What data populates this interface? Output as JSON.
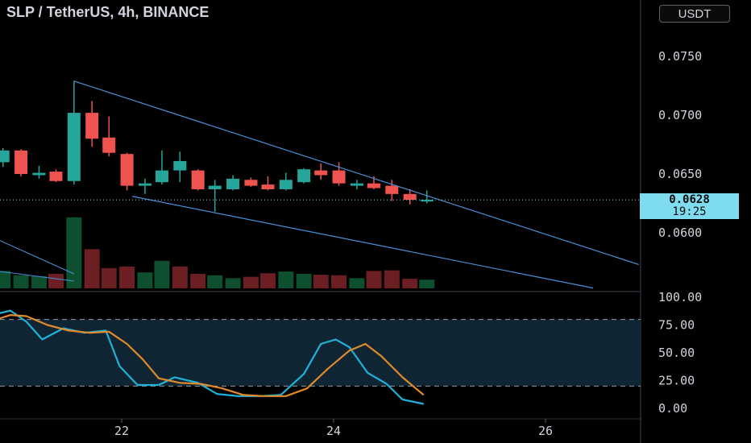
{
  "title": "SLP / TetherUS, 4h, BINANCE",
  "currency_button": "USDT",
  "last_price": {
    "value": "0.0628",
    "countdown": "19:25"
  },
  "colors": {
    "up": "#26a69a",
    "down": "#ef5350",
    "vol_up": "#0d4f2f",
    "vol_down": "#6b1f22",
    "trendline": "#4a90d9",
    "stoch_k": "#1fb3d9",
    "stoch_d": "#e08a2c",
    "stoch_band": "#0f2533"
  },
  "chart_data": [
    {
      "type": "candlestick",
      "title": "SLP / TetherUS, 4h, BINANCE",
      "x_ticks": [
        {
          "x": 22,
          "label": "22"
        },
        {
          "x": 24,
          "label": "24"
        },
        {
          "x": 26,
          "label": "26"
        }
      ],
      "y_ticks": [
        {
          "v": 0.075,
          "label": "0.0750"
        },
        {
          "v": 0.07,
          "label": "0.0700"
        },
        {
          "v": 0.065,
          "label": "0.0650"
        },
        {
          "v": 0.06,
          "label": "0.0600"
        }
      ],
      "candles": [
        {
          "t": 20.88,
          "o": 0.066,
          "h": 0.0672,
          "l": 0.0656,
          "c": 0.067
        },
        {
          "t": 21.05,
          "o": 0.067,
          "h": 0.0671,
          "l": 0.0648,
          "c": 0.065
        },
        {
          "t": 21.22,
          "o": 0.0649,
          "h": 0.0657,
          "l": 0.0646,
          "c": 0.0651
        },
        {
          "t": 21.38,
          "o": 0.0652,
          "h": 0.0654,
          "l": 0.0643,
          "c": 0.0644
        },
        {
          "t": 21.55,
          "o": 0.0644,
          "h": 0.0729,
          "l": 0.0641,
          "c": 0.0702
        },
        {
          "t": 21.72,
          "o": 0.0702,
          "h": 0.0712,
          "l": 0.0673,
          "c": 0.068
        },
        {
          "t": 21.88,
          "o": 0.0681,
          "h": 0.0699,
          "l": 0.0665,
          "c": 0.0668
        },
        {
          "t": 22.05,
          "o": 0.0667,
          "h": 0.0668,
          "l": 0.0636,
          "c": 0.064
        },
        {
          "t": 22.22,
          "o": 0.064,
          "h": 0.0646,
          "l": 0.0633,
          "c": 0.0642
        },
        {
          "t": 22.38,
          "o": 0.0643,
          "h": 0.067,
          "l": 0.0641,
          "c": 0.0653
        },
        {
          "t": 22.55,
          "o": 0.0653,
          "h": 0.0669,
          "l": 0.0643,
          "c": 0.0661
        },
        {
          "t": 22.72,
          "o": 0.0653,
          "h": 0.0654,
          "l": 0.0636,
          "c": 0.0637
        },
        {
          "t": 22.88,
          "o": 0.0637,
          "h": 0.0645,
          "l": 0.0618,
          "c": 0.064
        },
        {
          "t": 23.05,
          "o": 0.0637,
          "h": 0.0649,
          "l": 0.0636,
          "c": 0.0646
        },
        {
          "t": 23.22,
          "o": 0.0645,
          "h": 0.0647,
          "l": 0.0639,
          "c": 0.064
        },
        {
          "t": 23.38,
          "o": 0.0641,
          "h": 0.0648,
          "l": 0.0636,
          "c": 0.0637
        },
        {
          "t": 23.55,
          "o": 0.0637,
          "h": 0.0651,
          "l": 0.0636,
          "c": 0.0645
        },
        {
          "t": 23.72,
          "o": 0.0643,
          "h": 0.0655,
          "l": 0.0642,
          "c": 0.0654
        },
        {
          "t": 23.88,
          "o": 0.0653,
          "h": 0.0659,
          "l": 0.0645,
          "c": 0.0649
        },
        {
          "t": 24.05,
          "o": 0.0653,
          "h": 0.066,
          "l": 0.064,
          "c": 0.0642
        },
        {
          "t": 24.22,
          "o": 0.064,
          "h": 0.0645,
          "l": 0.0637,
          "c": 0.0642
        },
        {
          "t": 24.38,
          "o": 0.0642,
          "h": 0.0648,
          "l": 0.0637,
          "c": 0.0638
        },
        {
          "t": 24.55,
          "o": 0.064,
          "h": 0.0645,
          "l": 0.0627,
          "c": 0.0633
        },
        {
          "t": 24.72,
          "o": 0.0633,
          "h": 0.0637,
          "l": 0.0624,
          "c": 0.0628
        },
        {
          "t": 24.88,
          "o": 0.0627,
          "h": 0.0636,
          "l": 0.0625,
          "c": 0.0628
        }
      ],
      "volume": [
        {
          "t": 20.88,
          "v": 0.6,
          "dir": "up"
        },
        {
          "t": 21.05,
          "v": 0.45,
          "dir": "up"
        },
        {
          "t": 21.22,
          "v": 0.42,
          "dir": "up"
        },
        {
          "t": 21.38,
          "v": 0.5,
          "dir": "down"
        },
        {
          "t": 21.55,
          "v": 2.45,
          "dir": "up"
        },
        {
          "t": 21.72,
          "v": 1.35,
          "dir": "down"
        },
        {
          "t": 21.88,
          "v": 0.7,
          "dir": "down"
        },
        {
          "t": 22.05,
          "v": 0.75,
          "dir": "down"
        },
        {
          "t": 22.22,
          "v": 0.55,
          "dir": "up"
        },
        {
          "t": 22.38,
          "v": 0.95,
          "dir": "up"
        },
        {
          "t": 22.55,
          "v": 0.75,
          "dir": "down"
        },
        {
          "t": 22.72,
          "v": 0.5,
          "dir": "down"
        },
        {
          "t": 22.88,
          "v": 0.45,
          "dir": "up"
        },
        {
          "t": 23.05,
          "v": 0.35,
          "dir": "up"
        },
        {
          "t": 23.22,
          "v": 0.4,
          "dir": "down"
        },
        {
          "t": 23.38,
          "v": 0.52,
          "dir": "down"
        },
        {
          "t": 23.55,
          "v": 0.58,
          "dir": "up"
        },
        {
          "t": 23.72,
          "v": 0.5,
          "dir": "up"
        },
        {
          "t": 23.88,
          "v": 0.47,
          "dir": "down"
        },
        {
          "t": 24.05,
          "v": 0.45,
          "dir": "down"
        },
        {
          "t": 24.22,
          "v": 0.35,
          "dir": "up"
        },
        {
          "t": 24.38,
          "v": 0.6,
          "dir": "down"
        },
        {
          "t": 24.55,
          "v": 0.62,
          "dir": "down"
        },
        {
          "t": 24.72,
          "v": 0.33,
          "dir": "down"
        },
        {
          "t": 24.88,
          "v": 0.3,
          "dir": "up"
        }
      ],
      "trendlines": [
        {
          "t1": 21.55,
          "p1": 0.0729,
          "t2": 26.88,
          "p2": 0.0573
        },
        {
          "t1": 22.1,
          "p1": 0.0631,
          "t2": 26.45,
          "p2": 0.0553
        }
      ],
      "volume_trendlines": [
        {
          "t1": 20.82,
          "v1": 1.7,
          "t2": 21.55,
          "v2": 0.5
        },
        {
          "t1": 20.82,
          "v1": 0.6,
          "t2": 21.55,
          "v2": 0.25
        }
      ],
      "last_price_line": 0.0628
    },
    {
      "type": "line",
      "indicator": "stochastic",
      "y_ticks": [
        {
          "v": 100,
          "label": "100.00"
        },
        {
          "v": 75,
          "label": "75.00"
        },
        {
          "v": 50,
          "label": "50.00"
        },
        {
          "v": 25,
          "label": "25.00"
        },
        {
          "v": 0,
          "label": "0.00"
        }
      ],
      "bands": [
        80,
        20
      ],
      "ylim": [
        0,
        100
      ],
      "series": [
        {
          "key": "k",
          "x": [
            20.82,
            20.95,
            21.1,
            21.25,
            21.45,
            21.65,
            21.85,
            21.98,
            22.15,
            22.35,
            22.5,
            22.72,
            22.9,
            23.1,
            23.3,
            23.5,
            23.72,
            23.88,
            24.02,
            24.15,
            24.32,
            24.5,
            24.65,
            24.85
          ],
          "y": [
            85,
            88,
            78,
            62,
            72,
            68,
            70,
            38,
            21,
            21,
            28,
            23,
            13,
            11,
            11,
            12,
            31,
            58,
            62,
            55,
            32,
            22,
            8,
            4
          ]
        },
        {
          "key": "d",
          "x": [
            20.82,
            20.95,
            21.1,
            21.3,
            21.5,
            21.7,
            21.88,
            22.05,
            22.2,
            22.35,
            22.55,
            22.75,
            22.95,
            23.15,
            23.35,
            23.55,
            23.75,
            23.95,
            24.15,
            24.3,
            24.45,
            24.65,
            24.85
          ],
          "y": [
            80,
            84,
            83,
            75,
            70,
            68,
            69,
            58,
            44,
            27,
            23,
            22,
            18,
            12,
            11,
            11,
            18,
            36,
            52,
            58,
            47,
            28,
            12
          ]
        }
      ]
    }
  ]
}
